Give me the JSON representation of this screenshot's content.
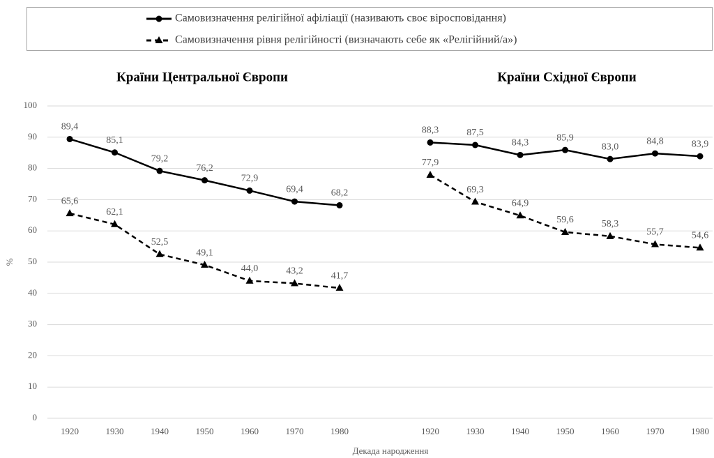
{
  "chart_data": {
    "type": "line",
    "xlabel": "Декада народження",
    "ylabel": "%",
    "ylim": [
      0,
      100
    ],
    "yticks": [
      0,
      10,
      20,
      30,
      40,
      50,
      60,
      70,
      80,
      90,
      100
    ],
    "grid": true,
    "legend": "top",
    "series": [
      {
        "name": "Самовизначення релігійної афіліації (називають своє віросповідання)",
        "color": "#000000",
        "style": "solid",
        "marker": "circle"
      },
      {
        "name": "Самовизначення рівня релігійності (визначають себе як «Релігійний/а»)",
        "color": "#000000",
        "style": "dashed",
        "marker": "triangle"
      }
    ],
    "panels": [
      {
        "title": "Країни Центральної Європи",
        "categories": [
          "1920",
          "1930",
          "1940",
          "1950",
          "1960",
          "1970",
          "1980"
        ],
        "series": [
          {
            "values": [
              89.4,
              85.1,
              79.2,
              76.2,
              72.9,
              69.4,
              68.2
            ],
            "value_labels": [
              "89,4",
              "85,1",
              "79,2",
              "76,2",
              "72,9",
              "69,4",
              "68,2"
            ]
          },
          {
            "values": [
              65.6,
              62.1,
              52.5,
              49.1,
              44.0,
              43.2,
              41.7
            ],
            "value_labels": [
              "65,6",
              "62,1",
              "52,5",
              "49,1",
              "44,0",
              "43,2",
              "41,7"
            ]
          }
        ]
      },
      {
        "title": "Країни Східної Європи",
        "categories": [
          "1920",
          "1930",
          "1940",
          "1950",
          "1960",
          "1970",
          "1980"
        ],
        "series": [
          {
            "values": [
              88.3,
              87.5,
              84.3,
              85.9,
              83.0,
              84.8,
              83.9
            ],
            "value_labels": [
              "88,3",
              "87,5",
              "84,3",
              "85,9",
              "83,0",
              "84,8",
              "83,9"
            ]
          },
          {
            "values": [
              77.9,
              69.3,
              64.9,
              59.6,
              58.3,
              55.7,
              54.6
            ],
            "value_labels": [
              "77,9",
              "69,3",
              "64,9",
              "59,6",
              "58,3",
              "55,7",
              "54,6"
            ]
          }
        ]
      }
    ]
  }
}
